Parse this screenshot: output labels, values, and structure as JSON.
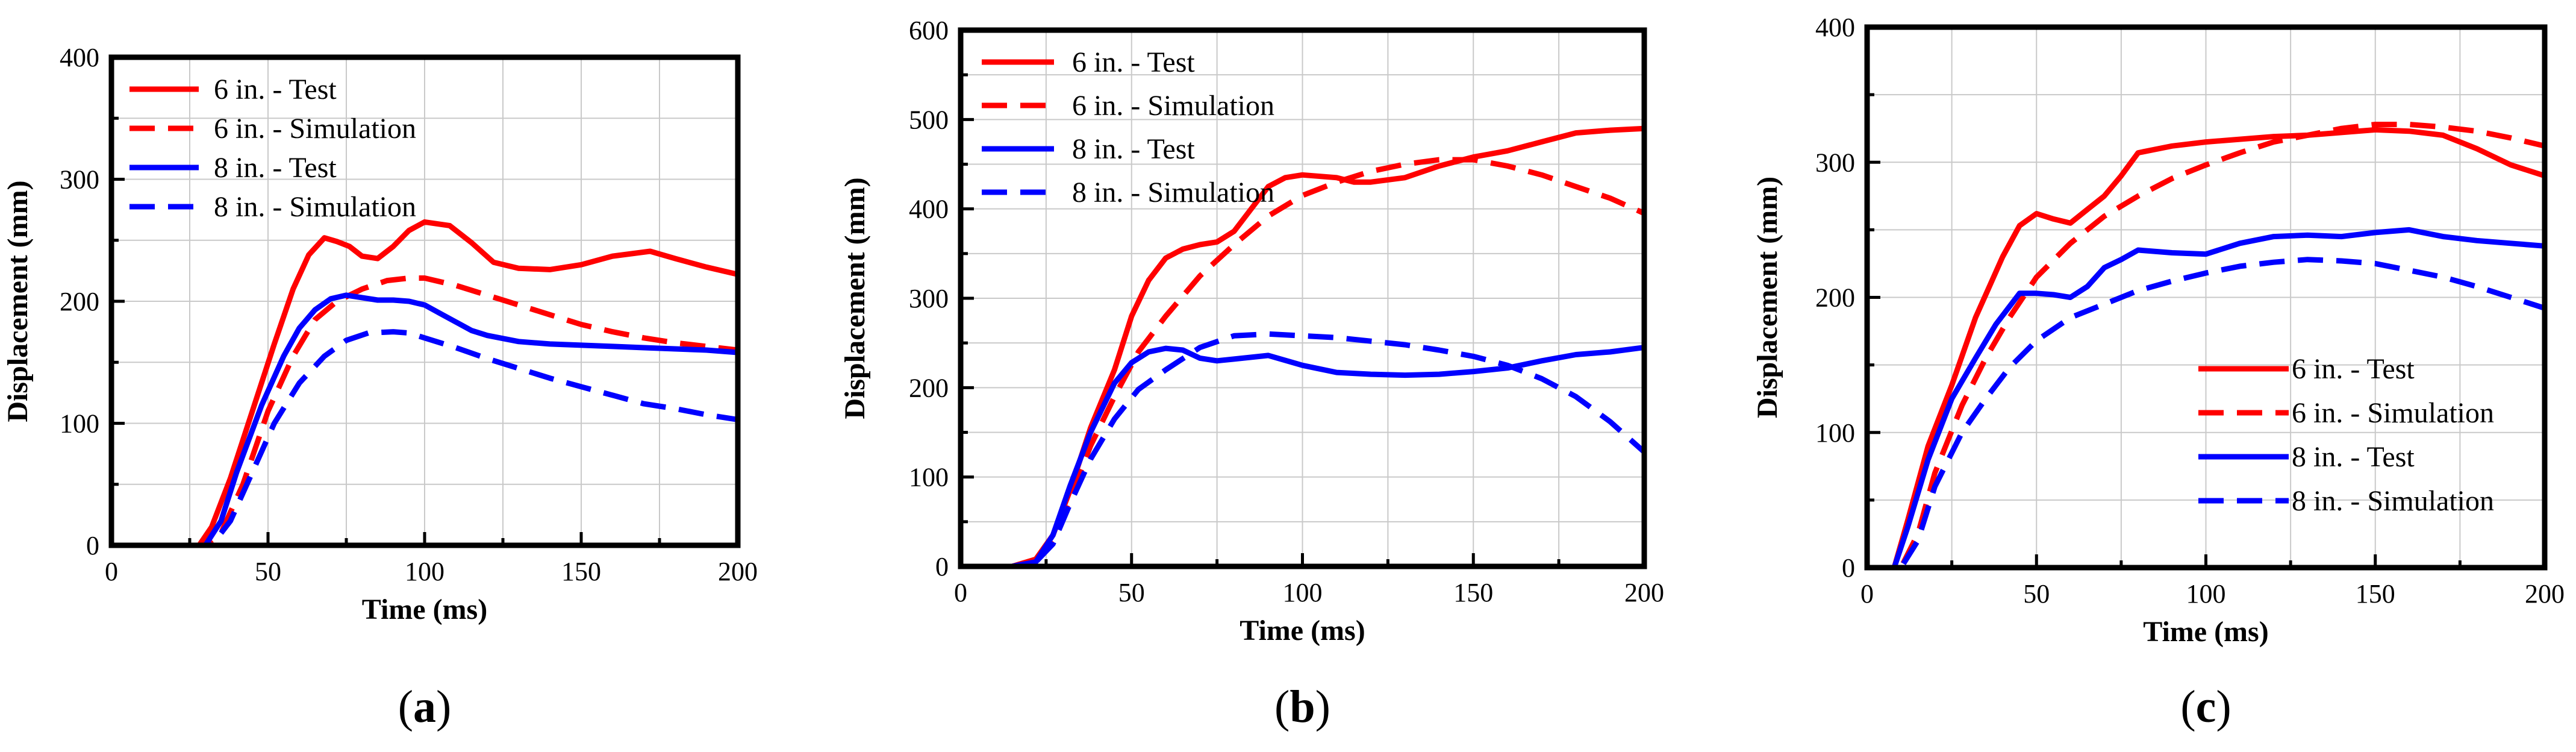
{
  "chart_data": [
    {
      "type": "line",
      "caption": "a",
      "xlabel": "Time (ms)",
      "ylabel": "Displacement (mm)",
      "xlim": [
        0,
        200
      ],
      "ylim": [
        0,
        400
      ],
      "xticks": [
        0,
        50,
        100,
        150,
        200
      ],
      "yticks": [
        0,
        100,
        200,
        300,
        400
      ],
      "grid": true,
      "legend_position": "top-left",
      "series": [
        {
          "name": "6 in. - Test",
          "color": "#ff0000",
          "dashed": false,
          "x": [
            0,
            20,
            28,
            32,
            38,
            45,
            52,
            58,
            63,
            68,
            72,
            76,
            80,
            85,
            90,
            95,
            100,
            108,
            115,
            122,
            130,
            140,
            150,
            160,
            172,
            180,
            190,
            200
          ],
          "y": [
            0,
            0,
            0,
            15,
            55,
            110,
            165,
            210,
            238,
            252,
            249,
            245,
            237,
            235,
            245,
            258,
            265,
            262,
            248,
            232,
            227,
            226,
            230,
            237,
            241,
            235,
            228,
            222
          ]
        },
        {
          "name": "6 in. - Simulation",
          "color": "#ff0000",
          "dashed": true,
          "x": [
            0,
            25,
            30,
            35,
            42,
            50,
            58,
            65,
            72,
            80,
            88,
            95,
            100,
            110,
            120,
            130,
            140,
            150,
            160,
            170,
            180,
            190,
            200
          ],
          "y": [
            0,
            0,
            0,
            10,
            50,
            110,
            155,
            185,
            200,
            210,
            217,
            219,
            219,
            213,
            205,
            197,
            189,
            181,
            175,
            170,
            166,
            163,
            160
          ]
        },
        {
          "name": "8 in. - Test",
          "color": "#0000ff",
          "dashed": false,
          "x": [
            0,
            25,
            30,
            35,
            40,
            48,
            55,
            60,
            65,
            70,
            75,
            80,
            85,
            90,
            95,
            100,
            105,
            110,
            115,
            120,
            130,
            140,
            150,
            160,
            170,
            180,
            190,
            200
          ],
          "y": [
            0,
            0,
            0,
            20,
            60,
            115,
            155,
            178,
            193,
            202,
            205,
            203,
            201,
            201,
            200,
            197,
            190,
            183,
            176,
            172,
            167,
            165,
            164,
            163,
            162,
            161,
            160,
            158
          ]
        },
        {
          "name": "8 in. - Simulation",
          "color": "#0000ff",
          "dashed": true,
          "x": [
            0,
            28,
            32,
            38,
            45,
            52,
            60,
            68,
            75,
            82,
            90,
            95,
            100,
            110,
            120,
            130,
            140,
            150,
            160,
            170,
            180,
            190,
            200
          ],
          "y": [
            0,
            0,
            0,
            20,
            60,
            100,
            133,
            155,
            168,
            174,
            175,
            174,
            170,
            162,
            153,
            145,
            137,
            130,
            123,
            116,
            112,
            107,
            103
          ]
        }
      ]
    },
    {
      "type": "line",
      "caption": "b",
      "xlabel": "Time (ms)",
      "ylabel": "Displacement (mm)",
      "xlim": [
        0,
        200
      ],
      "ylim": [
        0,
        600
      ],
      "xticks": [
        0,
        50,
        100,
        150,
        200
      ],
      "yticks": [
        0,
        100,
        200,
        300,
        400,
        500,
        600
      ],
      "grid": true,
      "legend_position": "top-left",
      "series": [
        {
          "name": "6 in. - Test",
          "color": "#ff0000",
          "dashed": false,
          "x": [
            0,
            15,
            22,
            27,
            32,
            38,
            45,
            50,
            55,
            60,
            65,
            70,
            75,
            80,
            85,
            90,
            95,
            100,
            110,
            115,
            120,
            130,
            140,
            150,
            160,
            170,
            180,
            190,
            200
          ],
          "y": [
            0,
            0,
            8,
            35,
            85,
            155,
            220,
            280,
            320,
            345,
            355,
            360,
            363,
            375,
            400,
            425,
            435,
            438,
            435,
            430,
            430,
            435,
            448,
            458,
            465,
            475,
            485,
            488,
            490
          ]
        },
        {
          "name": "6 in. - Simulation",
          "color": "#ff0000",
          "dashed": true,
          "x": [
            0,
            15,
            22,
            27,
            32,
            38,
            45,
            52,
            60,
            70,
            80,
            90,
            100,
            110,
            120,
            130,
            140,
            150,
            160,
            170,
            180,
            190,
            200
          ],
          "y": [
            0,
            0,
            5,
            30,
            75,
            135,
            190,
            240,
            280,
            325,
            360,
            392,
            415,
            430,
            442,
            450,
            455,
            455,
            448,
            438,
            425,
            412,
            395
          ]
        },
        {
          "name": "8 in. - Test",
          "color": "#0000ff",
          "dashed": false,
          "x": [
            0,
            15,
            22,
            27,
            32,
            38,
            45,
            50,
            55,
            60,
            65,
            70,
            75,
            80,
            90,
            100,
            110,
            120,
            130,
            140,
            150,
            160,
            170,
            180,
            190,
            200
          ],
          "y": [
            0,
            0,
            5,
            35,
            90,
            150,
            205,
            228,
            240,
            244,
            242,
            233,
            230,
            232,
            236,
            225,
            217,
            215,
            214,
            215,
            218,
            222,
            230,
            237,
            240,
            245
          ]
        },
        {
          "name": "8 in. - Simulation",
          "color": "#0000ff",
          "dashed": true,
          "x": [
            0,
            15,
            22,
            27,
            32,
            38,
            45,
            52,
            60,
            70,
            80,
            90,
            100,
            110,
            120,
            130,
            140,
            150,
            160,
            170,
            180,
            190,
            200
          ],
          "y": [
            0,
            0,
            5,
            25,
            70,
            120,
            165,
            198,
            220,
            245,
            258,
            260,
            258,
            256,
            252,
            248,
            242,
            235,
            225,
            210,
            190,
            162,
            128
          ]
        }
      ]
    },
    {
      "type": "line",
      "caption": "c",
      "xlabel": "Time (ms)",
      "ylabel": "Displacement (mm)",
      "xlim": [
        0,
        200
      ],
      "ylim": [
        0,
        400
      ],
      "xticks": [
        0,
        50,
        100,
        150,
        200
      ],
      "yticks": [
        0,
        100,
        200,
        300,
        400
      ],
      "grid": true,
      "legend_position": "bottom-right",
      "series": [
        {
          "name": "6 in. - Test",
          "color": "#ff0000",
          "dashed": false,
          "x": [
            0,
            8,
            12,
            18,
            25,
            32,
            40,
            45,
            50,
            55,
            60,
            65,
            70,
            75,
            80,
            90,
            100,
            110,
            120,
            130,
            140,
            150,
            160,
            170,
            180,
            190,
            200
          ],
          "y": [
            0,
            0,
            35,
            90,
            135,
            185,
            230,
            253,
            262,
            258,
            255,
            265,
            275,
            290,
            307,
            312,
            315,
            317,
            319,
            320,
            322,
            324,
            323,
            320,
            310,
            298,
            290
          ]
        },
        {
          "name": "6 in. - Simulation",
          "color": "#ff0000",
          "dashed": true,
          "x": [
            0,
            10,
            15,
            20,
            28,
            35,
            42,
            50,
            60,
            70,
            80,
            90,
            100,
            110,
            120,
            130,
            140,
            150,
            160,
            170,
            180,
            190,
            200
          ],
          "y": [
            0,
            0,
            25,
            70,
            120,
            155,
            185,
            215,
            240,
            260,
            275,
            288,
            298,
            307,
            315,
            320,
            325,
            328,
            328,
            326,
            323,
            318,
            312
          ]
        },
        {
          "name": "8 in. - Test",
          "color": "#0000ff",
          "dashed": false,
          "x": [
            0,
            8,
            12,
            18,
            25,
            32,
            38,
            45,
            50,
            55,
            60,
            65,
            70,
            75,
            80,
            90,
            100,
            110,
            120,
            130,
            140,
            150,
            160,
            170,
            180,
            190,
            200
          ],
          "y": [
            0,
            0,
            30,
            80,
            125,
            155,
            180,
            203,
            203,
            202,
            200,
            208,
            222,
            228,
            235,
            233,
            232,
            240,
            245,
            246,
            245,
            248,
            250,
            245,
            242,
            240,
            238
          ]
        },
        {
          "name": "8 in. - Simulation",
          "color": "#0000ff",
          "dashed": true,
          "x": [
            0,
            10,
            15,
            20,
            28,
            35,
            42,
            50,
            60,
            70,
            80,
            90,
            100,
            110,
            120,
            130,
            140,
            150,
            160,
            170,
            180,
            190,
            200
          ],
          "y": [
            0,
            0,
            20,
            60,
            100,
            125,
            148,
            168,
            185,
            195,
            205,
            212,
            218,
            223,
            226,
            228,
            227,
            225,
            220,
            215,
            208,
            200,
            192
          ]
        }
      ]
    }
  ]
}
